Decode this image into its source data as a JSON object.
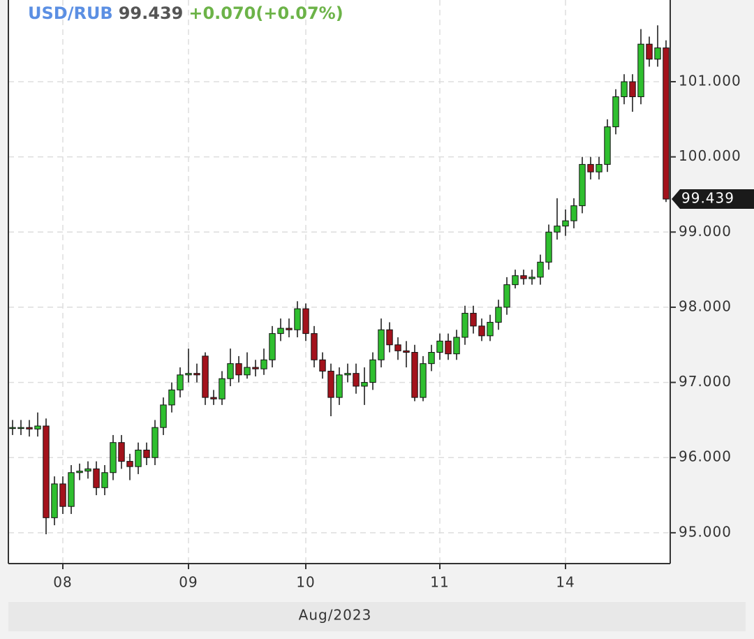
{
  "chart_data": {
    "type": "candlestick",
    "title": "USD/RUB",
    "last_price": "99.439",
    "change": "+0.070(+0.07%)",
    "x_label": "Aug/2023",
    "categories": [
      null,
      null,
      null,
      null,
      null,
      null,
      "08",
      null,
      null,
      null,
      null,
      null,
      null,
      null,
      null,
      null,
      null,
      null,
      null,
      null,
      null,
      "09",
      null,
      null,
      null,
      null,
      null,
      null,
      null,
      null,
      null,
      null,
      null,
      null,
      null,
      "10",
      null,
      null,
      null,
      null,
      null,
      null,
      null,
      null,
      null,
      null,
      null,
      null,
      null,
      null,
      null,
      "11",
      null,
      null,
      null,
      null,
      null,
      null,
      null,
      null,
      null,
      null,
      null,
      null,
      null,
      null,
      "14",
      null,
      null,
      null,
      null,
      null,
      null,
      null,
      null,
      null,
      null,
      null,
      null
    ],
    "series": [
      {
        "name": "USD/RUB",
        "up_color": "#2fbf2f",
        "down_color": "#a3121c",
        "open": [
          96.4,
          96.4,
          96.4,
          96.38,
          96.42,
          95.2,
          95.65,
          95.35,
          95.8,
          95.82,
          95.85,
          95.6,
          95.8,
          96.2,
          95.95,
          95.88,
          96.1,
          96.0,
          96.4,
          96.7,
          96.9,
          97.1,
          97.12,
          97.35,
          96.8,
          96.78,
          97.05,
          97.25,
          97.1,
          97.2,
          97.18,
          97.3,
          97.65,
          97.72,
          97.7,
          97.98,
          97.65,
          97.3,
          97.15,
          96.8,
          97.1,
          97.12,
          96.95,
          97.0,
          97.3,
          97.7,
          97.5,
          97.42,
          97.4,
          96.8,
          97.25,
          97.4,
          97.55,
          97.38,
          97.6,
          97.92,
          97.75,
          97.62,
          97.8,
          98.0,
          98.3,
          98.42,
          98.38,
          98.4,
          98.6,
          99.0,
          99.08,
          99.15,
          99.35,
          99.9,
          99.8,
          99.9,
          100.4,
          100.8,
          101.0,
          100.8,
          101.5,
          101.3,
          101.45
        ],
        "high": [
          96.5,
          96.5,
          96.5,
          96.6,
          96.52,
          95.75,
          95.75,
          95.9,
          95.92,
          95.95,
          95.95,
          95.9,
          96.3,
          96.3,
          96.05,
          96.2,
          96.2,
          96.5,
          96.8,
          97.0,
          97.2,
          97.45,
          97.25,
          97.4,
          96.9,
          97.15,
          97.45,
          97.35,
          97.4,
          97.3,
          97.45,
          97.75,
          97.85,
          97.85,
          98.08,
          98.05,
          97.75,
          97.4,
          97.25,
          97.2,
          97.25,
          97.25,
          97.2,
          97.4,
          97.85,
          97.8,
          97.6,
          97.55,
          97.5,
          97.35,
          97.5,
          97.65,
          97.65,
          97.7,
          98.02,
          98.02,
          97.85,
          97.9,
          98.1,
          98.4,
          98.5,
          98.5,
          98.5,
          98.7,
          99.1,
          99.45,
          99.3,
          99.45,
          100.0,
          100.0,
          100.0,
          100.5,
          100.9,
          101.1,
          101.1,
          101.7,
          101.6,
          101.75,
          101.55
        ],
        "low": [
          96.3,
          96.3,
          96.28,
          96.28,
          94.98,
          95.1,
          95.25,
          95.25,
          95.7,
          95.72,
          95.5,
          95.5,
          95.7,
          95.85,
          95.7,
          95.78,
          95.9,
          95.9,
          96.3,
          96.6,
          96.8,
          97.0,
          97.0,
          96.7,
          96.7,
          96.7,
          96.95,
          97.0,
          97.05,
          97.08,
          97.1,
          97.2,
          97.55,
          97.6,
          97.6,
          97.55,
          97.2,
          97.05,
          96.55,
          96.7,
          97.0,
          96.85,
          96.7,
          96.9,
          97.2,
          97.4,
          97.3,
          97.2,
          96.75,
          96.75,
          97.15,
          97.3,
          97.3,
          97.3,
          97.5,
          97.65,
          97.55,
          97.55,
          97.7,
          97.9,
          98.25,
          98.3,
          98.3,
          98.3,
          98.5,
          98.9,
          98.95,
          99.05,
          99.25,
          99.7,
          99.7,
          99.8,
          100.3,
          100.7,
          100.6,
          100.7,
          101.2,
          101.2,
          99.4
        ],
        "close": [
          96.4,
          96.4,
          96.38,
          96.42,
          95.2,
          95.65,
          95.35,
          95.8,
          95.82,
          95.85,
          95.6,
          95.8,
          96.2,
          95.95,
          95.88,
          96.1,
          96.0,
          96.4,
          96.7,
          96.9,
          97.1,
          97.12,
          97.1,
          96.8,
          96.78,
          97.05,
          97.25,
          97.1,
          97.2,
          97.18,
          97.3,
          97.65,
          97.72,
          97.7,
          97.98,
          97.65,
          97.3,
          97.15,
          96.8,
          97.1,
          97.12,
          96.95,
          97.0,
          97.3,
          97.7,
          97.5,
          97.42,
          97.4,
          96.8,
          97.25,
          97.4,
          97.55,
          97.38,
          97.6,
          97.92,
          97.75,
          97.62,
          97.8,
          98.0,
          98.3,
          98.42,
          98.38,
          98.4,
          98.6,
          99.0,
          99.08,
          99.15,
          99.35,
          99.9,
          99.8,
          99.9,
          100.4,
          100.8,
          101.0,
          100.8,
          101.5,
          101.3,
          101.45,
          99.439
        ]
      }
    ],
    "ylim": [
      94.59,
      102.087
    ],
    "yticks": [
      {
        "value": 95,
        "label": "95.000"
      },
      {
        "value": 96,
        "label": "96.000"
      },
      {
        "value": 97,
        "label": "97.000"
      },
      {
        "value": 98,
        "label": "98.000"
      },
      {
        "value": 99,
        "label": "99.000"
      },
      {
        "value": 100,
        "label": "100.000"
      },
      {
        "value": 101,
        "label": "101.000"
      }
    ],
    "grid": true,
    "axis_side": "right"
  }
}
